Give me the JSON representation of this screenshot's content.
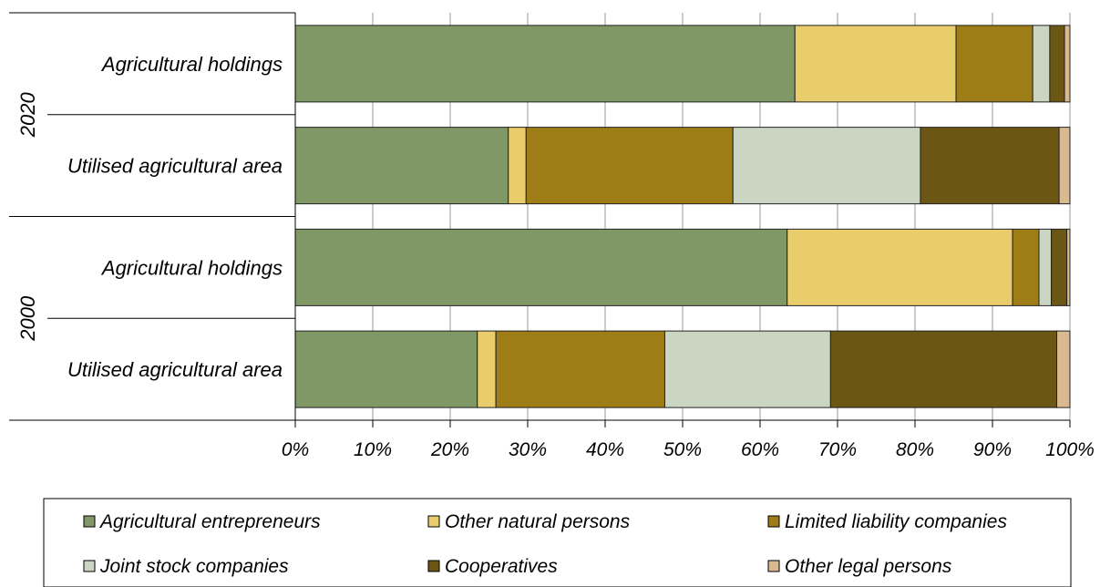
{
  "chart_data": {
    "type": "bar",
    "orientation": "horizontal",
    "stacked": "100%",
    "groups": [
      {
        "name": "2020",
        "categories": [
          "Agricultural holdings",
          "Utilised agricultural area"
        ]
      },
      {
        "name": "2000",
        "categories": [
          "Agricultural holdings",
          "Utilised agricultural area"
        ]
      }
    ],
    "series": [
      {
        "name": "Agricultural entrepreneurs",
        "color": "#7f9866",
        "values": [
          64.5,
          27.5,
          63.5,
          23.5
        ]
      },
      {
        "name": "Other natural persons",
        "color": "#e9cc6b",
        "values": [
          20.8,
          2.3,
          29.1,
          2.4
        ]
      },
      {
        "name": "Limited liability companies",
        "color": "#9e7d17",
        "values": [
          9.9,
          26.7,
          3.4,
          21.8
        ]
      },
      {
        "name": "Joint stock companies",
        "color": "#cbd6c2",
        "values": [
          2.2,
          24.2,
          1.6,
          21.4
        ]
      },
      {
        "name": "Cooperatives",
        "color": "#6b5613",
        "values": [
          1.9,
          17.9,
          2.0,
          29.2
        ]
      },
      {
        "name": "Other legal persons",
        "color": "#d8b990",
        "values": [
          0.7,
          1.4,
          0.4,
          1.7
        ]
      }
    ],
    "x_ticks": [
      "0%",
      "10%",
      "20%",
      "30%",
      "40%",
      "50%",
      "60%",
      "70%",
      "80%",
      "90%",
      "100%"
    ],
    "xlim": [
      0,
      100
    ],
    "grid": "vertical",
    "legend_position": "bottom",
    "title": "",
    "xlabel": "",
    "ylabel": ""
  }
}
